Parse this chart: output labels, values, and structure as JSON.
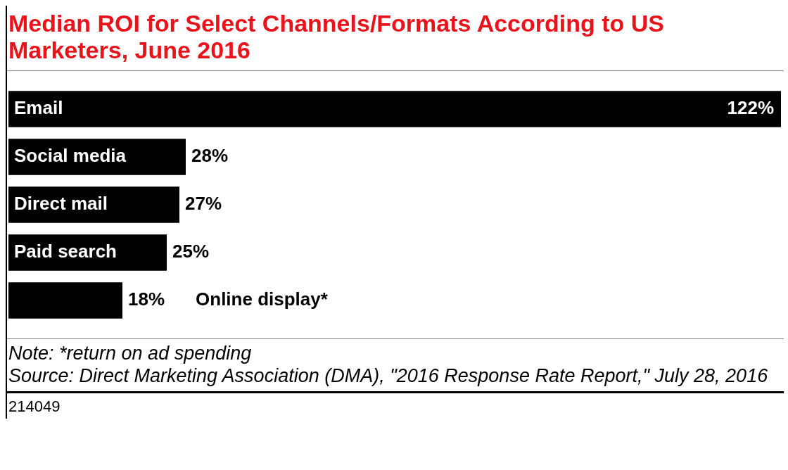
{
  "chart_data": {
    "type": "bar",
    "orientation": "horizontal",
    "title": "Median ROI for Select Channels/Formats According to US Marketers, June 2016",
    "categories": [
      "Email",
      "Social media",
      "Direct mail",
      "Paid search",
      "Online display*"
    ],
    "values": [
      122,
      28,
      27,
      25,
      18
    ],
    "color": "#000000",
    "value_labels": [
      "122%",
      "28%",
      "27%",
      "25%",
      "18%"
    ],
    "legend": false,
    "annotations": [
      "Note: *return on ad spending",
      "Source: Direct Marketing Association (DMA), \"2016 Response Rate Report,\" July 28, 2016",
      "214049"
    ]
  }
}
